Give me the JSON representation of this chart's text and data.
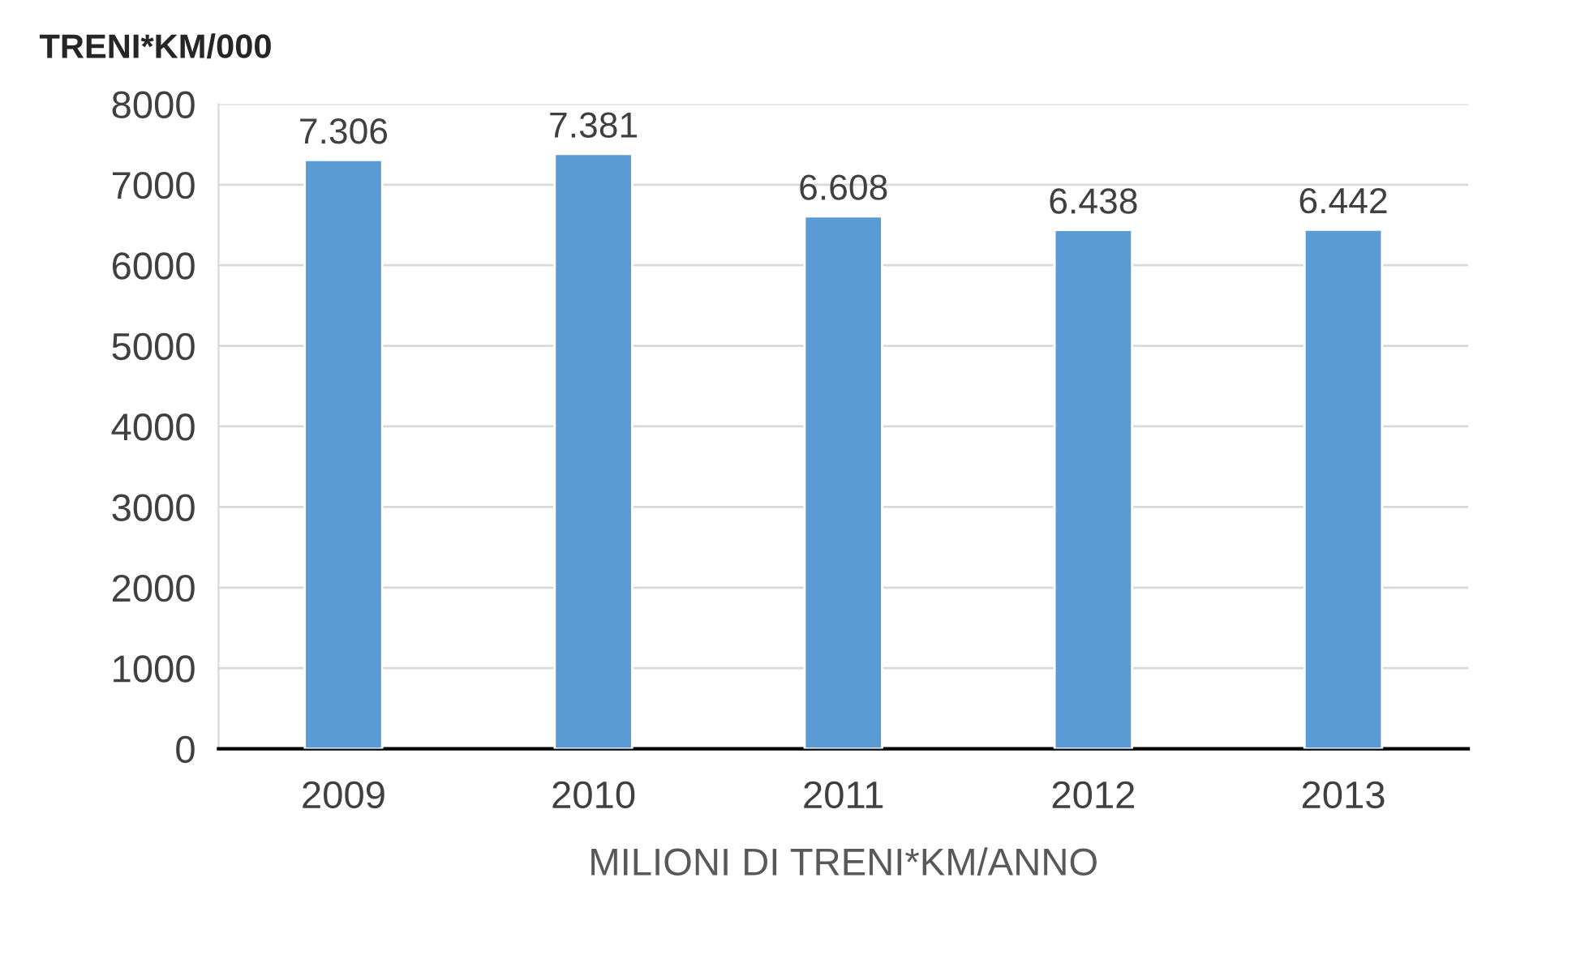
{
  "chart_data": {
    "type": "bar",
    "title": "TRENI*KM/000",
    "xlabel": "MILIONI DI TRENI*KM/ANNO",
    "categories": [
      "2009",
      "2010",
      "2011",
      "2012",
      "2013"
    ],
    "values": [
      7306,
      7381,
      6608,
      6438,
      6442
    ],
    "value_labels": [
      "7.306",
      "7.381",
      "6.608",
      "6.438",
      "6.442"
    ],
    "color": "#5b9bd5",
    "ylim": [
      0,
      8000
    ],
    "yticks": [
      0,
      1000,
      2000,
      3000,
      4000,
      5000,
      6000,
      7000,
      8000
    ],
    "grid": "y",
    "legend": false
  }
}
